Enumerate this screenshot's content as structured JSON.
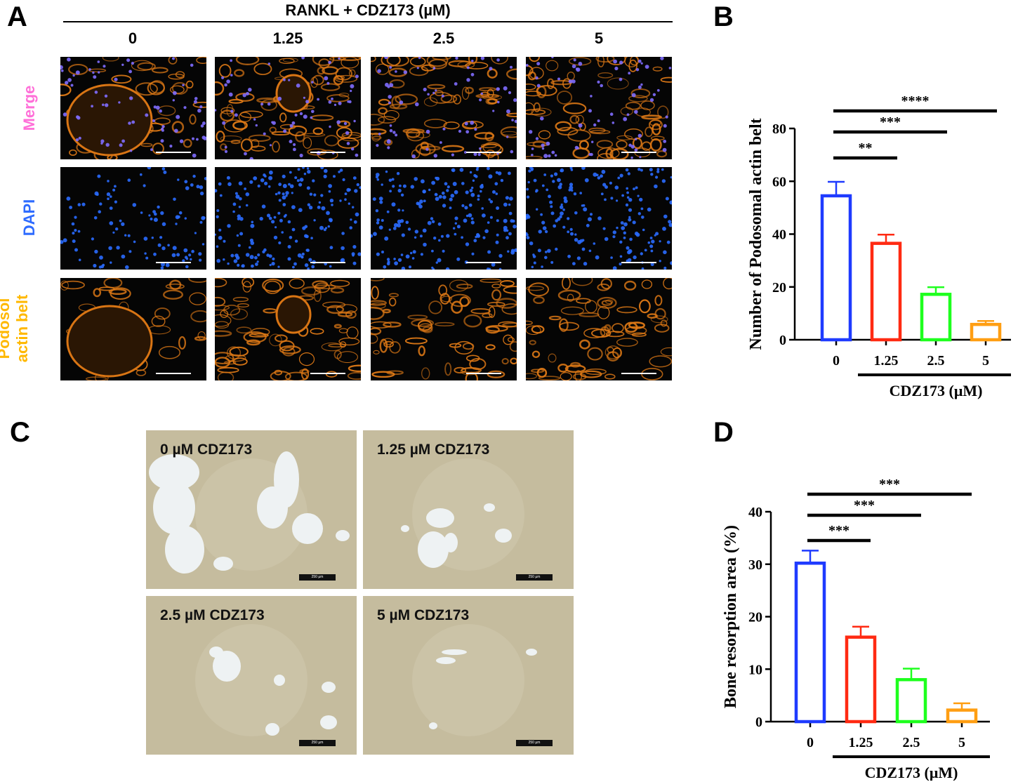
{
  "panels": {
    "a": "A",
    "b": "B",
    "c": "C",
    "d": "D"
  },
  "panel_a": {
    "header": "RANKL + CDZ173 (µM)",
    "columns": [
      "0",
      "1.25",
      "2.5",
      "5"
    ],
    "rows": [
      {
        "label_lines": [
          "Merge"
        ],
        "color": "#ff6fd8"
      },
      {
        "label_lines": [
          "DAPI"
        ],
        "color": "#2f6cff"
      },
      {
        "label_lines": [
          "Podosol",
          "actin belt"
        ],
        "color": "#ffb800"
      }
    ]
  },
  "panel_c": {
    "labels": [
      "0 µM CDZ173",
      "1.25 µM CDZ173",
      "2.5 µM CDZ173",
      "5 µM CDZ173"
    ],
    "scale_label": "250 µm"
  },
  "chart_data": [
    {
      "type": "bar",
      "panel": "B",
      "categories": [
        "0",
        "1.25",
        "2.5",
        "5"
      ],
      "values": [
        54.5,
        36.5,
        17.2,
        5.8
      ],
      "errors": [
        5.3,
        3.3,
        2.7,
        1.3
      ],
      "colors": [
        "#1f3bff",
        "#ff2a12",
        "#1eff1e",
        "#ff9e12"
      ],
      "ylabel": "Number of Podosomal actin belt",
      "xlabel": "CDZ173 (μM)",
      "ylim": [
        0,
        80
      ],
      "yticks": [
        "0",
        "20",
        "40",
        "60",
        "80"
      ],
      "ytick_values": [
        0,
        20,
        40,
        60,
        80
      ],
      "significance": [
        {
          "from": 0,
          "to": 1,
          "label": "**"
        },
        {
          "from": 0,
          "to": 2,
          "label": "***"
        },
        {
          "from": 0,
          "to": 3,
          "label": "****"
        }
      ]
    },
    {
      "type": "bar",
      "panel": "D",
      "categories": [
        "0",
        "1.25",
        "2.5",
        "5"
      ],
      "values": [
        30.2,
        16.1,
        8.0,
        2.2
      ],
      "errors": [
        2.4,
        2.0,
        2.1,
        1.3
      ],
      "colors": [
        "#1f3bff",
        "#ff2a12",
        "#1eff1e",
        "#ff9e12"
      ],
      "ylabel": "Bone resorption area (%)",
      "xlabel": "CDZ173 (μM)",
      "ylim": [
        0,
        40
      ],
      "yticks": [
        "0",
        "10",
        "20",
        "30",
        "40"
      ],
      "ytick_values": [
        0,
        10,
        20,
        30,
        40
      ],
      "significance": [
        {
          "from": 0,
          "to": 1,
          "label": "***"
        },
        {
          "from": 0,
          "to": 2,
          "label": "***"
        },
        {
          "from": 0,
          "to": 3,
          "label": "***"
        }
      ]
    }
  ]
}
